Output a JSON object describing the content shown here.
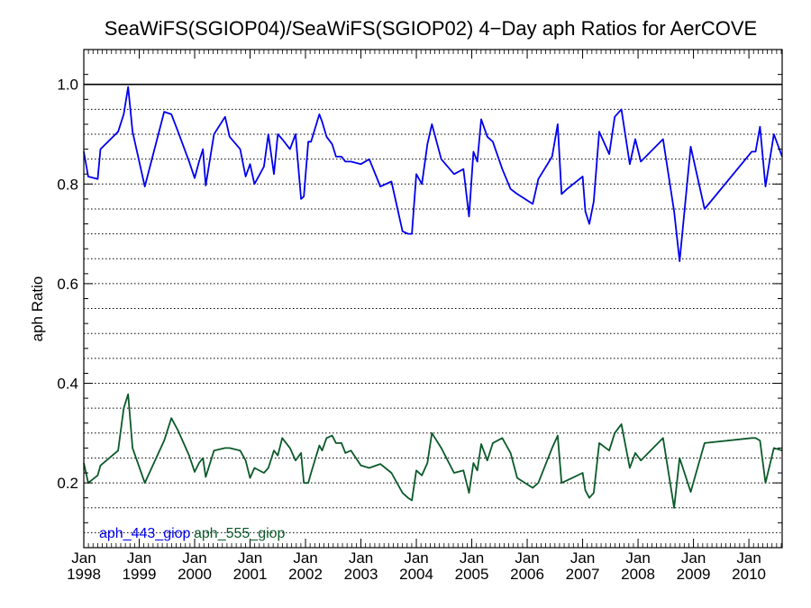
{
  "chart_data": {
    "type": "line",
    "title": "SeaWiFS(SGIOP04)/SeaWiFS(SGIOP02) 4−Day aph Ratios for AerCOVE",
    "xlabel": "",
    "ylabel": "aph Ratio",
    "xlim": [
      1998.0,
      2010.6
    ],
    "ylim": [
      0.07,
      1.07
    ],
    "yticks": [
      {
        "value": 0.2,
        "label": "0.2"
      },
      {
        "value": 0.4,
        "label": "0.4"
      },
      {
        "value": 0.6,
        "label": "0.6"
      },
      {
        "value": 0.8,
        "label": "0.8"
      },
      {
        "value": 1.0,
        "label": "1.0"
      }
    ],
    "ygrid_dotted": [
      0.1,
      0.15,
      0.2,
      0.25,
      0.3,
      0.35,
      0.4,
      0.45,
      0.5,
      0.55,
      0.6,
      0.65,
      0.7,
      0.75,
      0.8,
      0.85,
      0.9,
      0.95
    ],
    "reference_line": 1.0,
    "xticks": [
      {
        "value": 1998,
        "month": "Jan",
        "year": "1998"
      },
      {
        "value": 1999,
        "month": "Jan",
        "year": "1999"
      },
      {
        "value": 2000,
        "month": "Jan",
        "year": "2000"
      },
      {
        "value": 2001,
        "month": "Jan",
        "year": "2001"
      },
      {
        "value": 2002,
        "month": "Jan",
        "year": "2002"
      },
      {
        "value": 2003,
        "month": "Jan",
        "year": "2003"
      },
      {
        "value": 2004,
        "month": "Jan",
        "year": "2004"
      },
      {
        "value": 2005,
        "month": "Jan",
        "year": "2005"
      },
      {
        "value": 2006,
        "month": "Jan",
        "year": "2006"
      },
      {
        "value": 2007,
        "month": "Jan",
        "year": "2007"
      },
      {
        "value": 2008,
        "month": "Jan",
        "year": "2008"
      },
      {
        "value": 2009,
        "month": "Jan",
        "year": "2009"
      },
      {
        "value": 2010,
        "month": "Jan",
        "year": "2010"
      }
    ],
    "legend_position": "bottom-left",
    "series": [
      {
        "name": "aph_443_giop",
        "color": "#0000ee",
        "x": [
          1998.0,
          1998.08,
          1998.25,
          1998.3,
          1998.62,
          1998.72,
          1998.8,
          1998.88,
          1999.1,
          1999.45,
          1999.58,
          1999.7,
          1999.9,
          2000.0,
          2000.08,
          2000.15,
          2000.2,
          2000.35,
          2000.55,
          2000.63,
          2000.82,
          2000.92,
          2001.0,
          2001.08,
          2001.25,
          2001.33,
          2001.43,
          2001.5,
          2001.58,
          2001.72,
          2001.82,
          2001.92,
          2001.97,
          2002.05,
          2002.1,
          2002.25,
          2002.3,
          2002.38,
          2002.48,
          2002.55,
          2002.65,
          2002.72,
          2002.82,
          2003.0,
          2003.15,
          2003.35,
          2003.55,
          2003.75,
          2003.85,
          2003.92,
          2004.0,
          2004.1,
          2004.2,
          2004.28,
          2004.45,
          2004.68,
          2004.85,
          2004.95,
          2005.03,
          2005.1,
          2005.17,
          2005.28,
          2005.38,
          2005.55,
          2005.7,
          2005.82,
          2006.1,
          2006.2,
          2006.45,
          2006.55,
          2006.62,
          2006.72,
          2007.0,
          2007.05,
          2007.12,
          2007.2,
          2007.3,
          2007.48,
          2007.58,
          2007.7,
          2007.85,
          2007.95,
          2008.05,
          2008.45,
          2008.65,
          2008.75,
          2008.95,
          2009.2,
          2010.05,
          2010.12,
          2010.2,
          2010.3,
          2010.45,
          2010.6
        ],
        "y": [
          0.865,
          0.815,
          0.81,
          0.87,
          0.905,
          0.94,
          0.995,
          0.905,
          0.795,
          0.945,
          0.94,
          0.905,
          0.845,
          0.812,
          0.845,
          0.87,
          0.797,
          0.9,
          0.935,
          0.895,
          0.87,
          0.815,
          0.84,
          0.8,
          0.835,
          0.9,
          0.82,
          0.9,
          0.89,
          0.87,
          0.9,
          0.77,
          0.775,
          0.885,
          0.885,
          0.94,
          0.925,
          0.895,
          0.88,
          0.855,
          0.855,
          0.845,
          0.845,
          0.84,
          0.85,
          0.795,
          0.805,
          0.705,
          0.7,
          0.7,
          0.82,
          0.8,
          0.88,
          0.92,
          0.85,
          0.82,
          0.83,
          0.735,
          0.865,
          0.845,
          0.93,
          0.895,
          0.885,
          0.83,
          0.79,
          0.78,
          0.76,
          0.81,
          0.855,
          0.92,
          0.78,
          0.79,
          0.815,
          0.745,
          0.72,
          0.765,
          0.905,
          0.86,
          0.935,
          0.95,
          0.84,
          0.89,
          0.845,
          0.89,
          0.745,
          0.645,
          0.875,
          0.75,
          0.865,
          0.865,
          0.915,
          0.795,
          0.9,
          0.855
        ]
      },
      {
        "name": "aph_555_giop",
        "color": "#0b5a2a",
        "x": [
          1998.0,
          1998.08,
          1998.25,
          1998.3,
          1998.62,
          1998.72,
          1998.8,
          1998.88,
          1999.1,
          1999.45,
          1999.58,
          1999.7,
          1999.9,
          2000.0,
          2000.08,
          2000.15,
          2000.2,
          2000.35,
          2000.55,
          2000.63,
          2000.82,
          2000.92,
          2001.0,
          2001.08,
          2001.25,
          2001.33,
          2001.43,
          2001.5,
          2001.58,
          2001.72,
          2001.82,
          2001.92,
          2001.97,
          2002.05,
          2002.1,
          2002.25,
          2002.3,
          2002.38,
          2002.48,
          2002.55,
          2002.65,
          2002.72,
          2002.82,
          2003.0,
          2003.15,
          2003.35,
          2003.55,
          2003.75,
          2003.85,
          2003.92,
          2004.0,
          2004.1,
          2004.2,
          2004.28,
          2004.45,
          2004.68,
          2004.85,
          2004.95,
          2005.03,
          2005.1,
          2005.17,
          2005.28,
          2005.38,
          2005.55,
          2005.7,
          2005.82,
          2006.1,
          2006.2,
          2006.45,
          2006.55,
          2006.62,
          2006.72,
          2007.0,
          2007.05,
          2007.12,
          2007.2,
          2007.3,
          2007.48,
          2007.58,
          2007.7,
          2007.85,
          2007.95,
          2008.05,
          2008.45,
          2008.65,
          2008.75,
          2008.95,
          2009.2,
          2010.05,
          2010.12,
          2010.2,
          2010.3,
          2010.45,
          2010.6
        ],
        "y": [
          0.24,
          0.2,
          0.215,
          0.235,
          0.265,
          0.35,
          0.378,
          0.27,
          0.2,
          0.285,
          0.33,
          0.305,
          0.255,
          0.222,
          0.24,
          0.25,
          0.212,
          0.265,
          0.27,
          0.27,
          0.265,
          0.245,
          0.21,
          0.23,
          0.22,
          0.23,
          0.265,
          0.255,
          0.29,
          0.27,
          0.245,
          0.26,
          0.2,
          0.2,
          0.22,
          0.275,
          0.265,
          0.29,
          0.295,
          0.28,
          0.28,
          0.26,
          0.265,
          0.235,
          0.23,
          0.238,
          0.22,
          0.18,
          0.17,
          0.165,
          0.225,
          0.215,
          0.24,
          0.3,
          0.27,
          0.22,
          0.225,
          0.18,
          0.24,
          0.225,
          0.278,
          0.245,
          0.28,
          0.29,
          0.26,
          0.21,
          0.19,
          0.2,
          0.27,
          0.295,
          0.2,
          0.205,
          0.22,
          0.185,
          0.17,
          0.18,
          0.28,
          0.265,
          0.3,
          0.318,
          0.23,
          0.26,
          0.245,
          0.29,
          0.15,
          0.25,
          0.182,
          0.28,
          0.29,
          0.29,
          0.285,
          0.2,
          0.27,
          0.265
        ]
      }
    ]
  }
}
